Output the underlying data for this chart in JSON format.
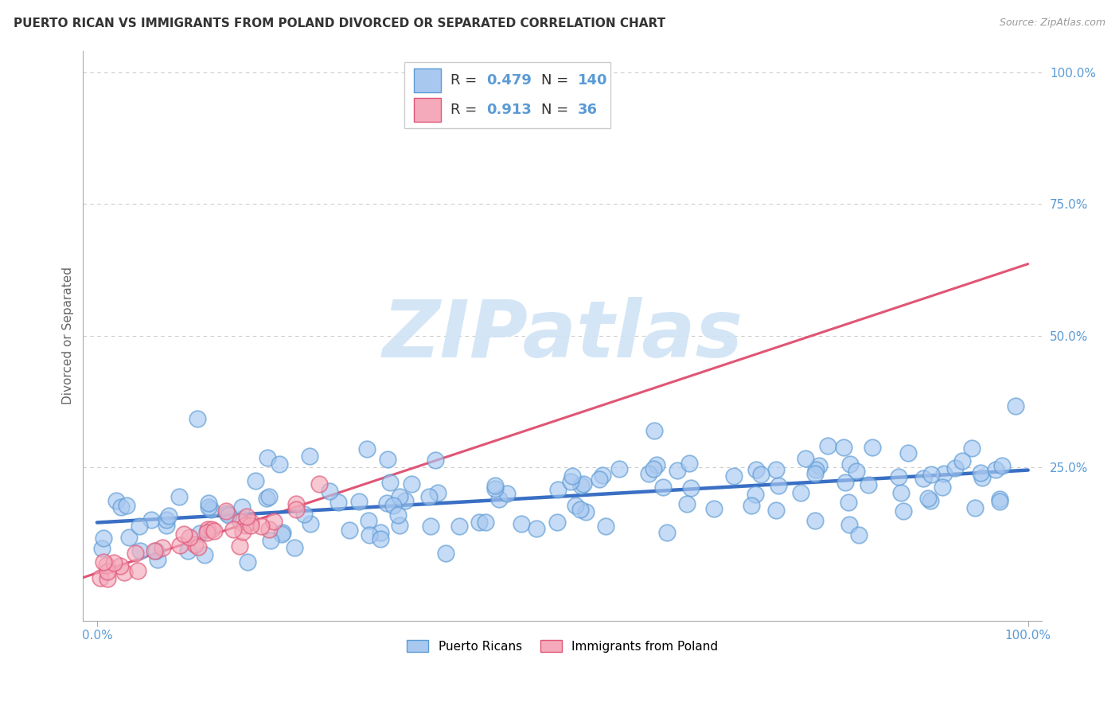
{
  "title": "PUERTO RICAN VS IMMIGRANTS FROM POLAND DIVORCED OR SEPARATED CORRELATION CHART",
  "source": "Source: ZipAtlas.com",
  "ylabel": "Divorced or Separated",
  "blue_color": "#A8C8F0",
  "blue_edge_color": "#5B9BD5",
  "blue_line_color": "#3A6FC4",
  "pink_color": "#F4AABB",
  "pink_edge_color": "#E05575",
  "pink_line_color": "#E05575",
  "R_blue": 0.479,
  "N_blue": 140,
  "R_pink": 0.913,
  "N_pink": 36,
  "watermark_text": "ZIPatlas",
  "watermark_color": "#D0E4F5",
  "grid_color": "#CCCCCC",
  "title_fontsize": 11,
  "source_fontsize": 9,
  "axis_tick_color": "#5B9BD5",
  "legend_R_label_color": "#333333",
  "legend_val_color": "#5B9BD5",
  "ylabel_color": "#666666",
  "legend_box_edge": "#CCCCCC"
}
